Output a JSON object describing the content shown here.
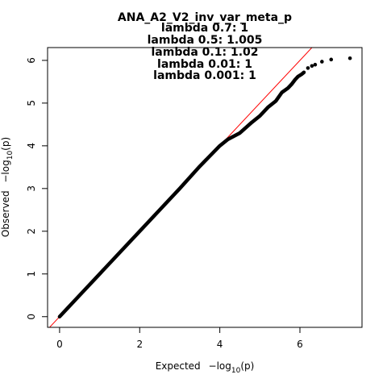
{
  "chart_data": {
    "type": "scatter",
    "title_lines": [
      "ANA_A2_V2_inv_var_meta_p",
      "lambda 0.7: 1",
      "lambda 0.5: 1.005",
      "lambda 0.1: 1.02",
      "lambda 0.01: 1",
      "lambda 0.001: 1"
    ],
    "xlabel": {
      "prefix": "Expected",
      "minus": "−log",
      "sub": "10",
      "suffix": "(p)"
    },
    "ylabel": {
      "prefix": "Observed",
      "minus": "−log",
      "sub": "10",
      "suffix": "(p)"
    },
    "xlim": [
      -0.3,
      7.55
    ],
    "ylim": [
      -0.25,
      6.3
    ],
    "x_ticks": [
      0,
      2,
      4,
      6
    ],
    "y_ticks": [
      0,
      1,
      2,
      3,
      4,
      5,
      6
    ],
    "reference_line": {
      "slope": 1,
      "intercept": 0,
      "color": "#ff0000"
    },
    "point_color": "#000000",
    "line_color": "#000000",
    "grid": false,
    "legend": "none",
    "main_curve": [
      [
        0.0,
        0.0
      ],
      [
        0.5,
        0.5
      ],
      [
        1.0,
        1.0
      ],
      [
        2.0,
        2.0
      ],
      [
        3.0,
        3.0
      ],
      [
        3.5,
        3.52
      ],
      [
        4.0,
        4.0
      ],
      [
        4.2,
        4.15
      ],
      [
        4.5,
        4.3
      ],
      [
        4.8,
        4.55
      ],
      [
        5.0,
        4.7
      ],
      [
        5.2,
        4.9
      ],
      [
        5.4,
        5.05
      ],
      [
        5.55,
        5.25
      ],
      [
        5.7,
        5.35
      ],
      [
        5.8,
        5.45
      ],
      [
        5.88,
        5.55
      ],
      [
        5.95,
        5.62
      ],
      [
        6.05,
        5.68
      ],
      [
        6.1,
        5.72
      ]
    ],
    "tail_points": [
      [
        6.2,
        5.82
      ],
      [
        6.3,
        5.87
      ],
      [
        6.38,
        5.9
      ],
      [
        6.55,
        5.97
      ],
      [
        6.78,
        6.02
      ],
      [
        7.25,
        6.05
      ]
    ]
  }
}
